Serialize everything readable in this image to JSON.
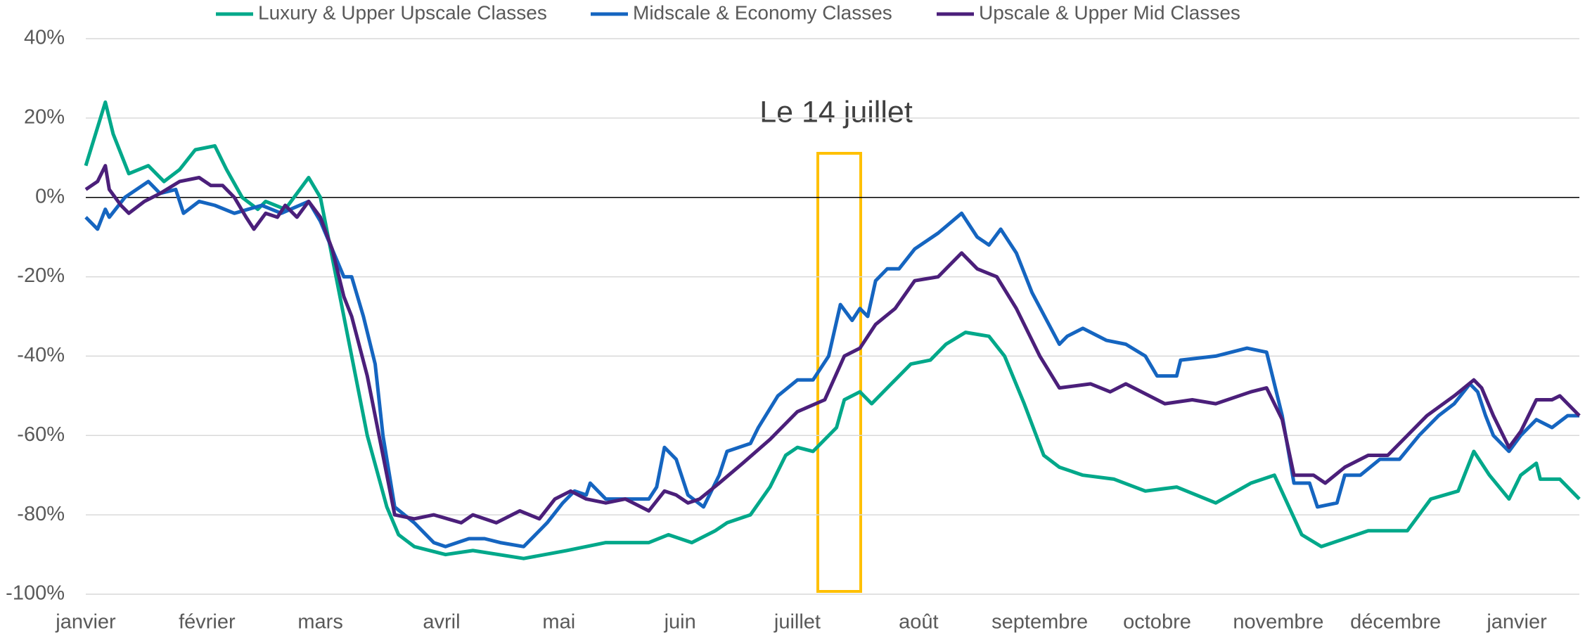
{
  "chart_data": {
    "type": "line",
    "annotation": "Le 14 juillet",
    "xlim": [
      0,
      382
    ],
    "xticks": [
      {
        "value": 0,
        "label": "janvier"
      },
      {
        "value": 31,
        "label": "février"
      },
      {
        "value": 60,
        "label": "mars"
      },
      {
        "value": 91,
        "label": "avril"
      },
      {
        "value": 121,
        "label": "mai"
      },
      {
        "value": 152,
        "label": "juin"
      },
      {
        "value": 182,
        "label": "juillet"
      },
      {
        "value": 213,
        "label": "août"
      },
      {
        "value": 244,
        "label": "septembre"
      },
      {
        "value": 274,
        "label": "octobre"
      },
      {
        "value": 305,
        "label": "novembre"
      },
      {
        "value": 335,
        "label": "décembre"
      },
      {
        "value": 366,
        "label": "janvier"
      }
    ],
    "ylim": [
      -100,
      40
    ],
    "yticks": [
      {
        "value": -100,
        "label": "-100%"
      },
      {
        "value": -80,
        "label": "-80%"
      },
      {
        "value": -60,
        "label": "-60%"
      },
      {
        "value": -40,
        "label": "-40%"
      },
      {
        "value": -20,
        "label": "-20%"
      },
      {
        "value": 0,
        "label": "0%"
      },
      {
        "value": 20,
        "label": "20%"
      },
      {
        "value": 40,
        "label": "40%"
      }
    ],
    "grid": true,
    "series": [
      {
        "name": "Luxury & Upper Upscale Classes",
        "color": "#00a88a",
        "x": [
          0,
          5,
          7,
          11,
          16,
          20,
          24,
          28,
          33,
          36,
          40,
          44,
          46,
          51,
          57,
          60,
          64,
          68,
          72,
          77,
          80,
          84,
          92,
          99,
          112,
          123,
          133,
          144,
          149,
          155,
          161,
          164,
          170,
          175,
          179,
          182,
          186,
          192,
          194,
          198,
          201,
          206,
          211,
          216,
          220,
          225,
          231,
          235,
          240,
          245,
          249,
          255,
          263,
          271,
          279,
          289,
          298,
          304,
          311,
          316,
          328,
          338,
          344,
          351,
          355,
          359,
          364,
          367,
          371,
          372,
          377,
          382
        ],
        "values": [
          8,
          24,
          16,
          6,
          8,
          4,
          7,
          12,
          13,
          7,
          0,
          -3,
          -1,
          -3,
          5,
          0,
          -20,
          -40,
          -60,
          -78,
          -85,
          -88,
          -90,
          -89,
          -91,
          -89,
          -87,
          -87,
          -85,
          -87,
          -84,
          -82,
          -80,
          -73,
          -65,
          -63,
          -64,
          -58,
          -51,
          -49,
          -52,
          -47,
          -42,
          -41,
          -37,
          -34,
          -35,
          -40,
          -52,
          -65,
          -68,
          -70,
          -71,
          -74,
          -73,
          -77,
          -72,
          -70,
          -85,
          -88,
          -84,
          -84,
          -76,
          -74,
          -64,
          -70,
          -76,
          -70,
          -67,
          -71,
          -71,
          -76
        ]
      },
      {
        "name": "Midscale & Economy Classes",
        "color": "#1565c0",
        "x": [
          0,
          3,
          5,
          6,
          10,
          16,
          19,
          23,
          25,
          29,
          33,
          38,
          45,
          50,
          57,
          60,
          63,
          66,
          68,
          71,
          74,
          76,
          79,
          84,
          89,
          92,
          98,
          102,
          106,
          112,
          115,
          118,
          122,
          125,
          128,
          129,
          133,
          138,
          144,
          146,
          148,
          151,
          154,
          158,
          162,
          164,
          170,
          172,
          177,
          182,
          186,
          190,
          193,
          196,
          198,
          200,
          202,
          205,
          208,
          212,
          218,
          224,
          228,
          231,
          234,
          238,
          242,
          249,
          251,
          255,
          261,
          266,
          271,
          274,
          279,
          280,
          289,
          297,
          302,
          306,
          309,
          313,
          315,
          320,
          322,
          326,
          331,
          336,
          341,
          346,
          350,
          354,
          356,
          358,
          360,
          364,
          367,
          371,
          375,
          379,
          382
        ],
        "values": [
          -5,
          -8,
          -3,
          -5,
          0,
          4,
          1,
          2,
          -4,
          -1,
          -2,
          -4,
          -2,
          -4,
          -1,
          -6,
          -13,
          -20,
          -20,
          -30,
          -42,
          -60,
          -78,
          -82,
          -87,
          -88,
          -86,
          -86,
          -87,
          -88,
          -85,
          -82,
          -77,
          -74,
          -75,
          -72,
          -76,
          -76,
          -76,
          -73,
          -63,
          -66,
          -75,
          -78,
          -70,
          -64,
          -62,
          -58,
          -50,
          -46,
          -46,
          -40,
          -27,
          -31,
          -28,
          -30,
          -21,
          -18,
          -18,
          -13,
          -9,
          -4,
          -10,
          -12,
          -8,
          -14,
          -24,
          -37,
          -35,
          -33,
          -36,
          -37,
          -40,
          -45,
          -45,
          -41,
          -40,
          -38,
          -39,
          -55,
          -72,
          -72,
          -78,
          -77,
          -70,
          -70,
          -66,
          -66,
          -60,
          -55,
          -52,
          -47,
          -49,
          -55,
          -60,
          -64,
          -60,
          -56,
          -58,
          -55,
          -55
        ]
      },
      {
        "name": "Upscale & Upper Mid Classes",
        "color": "#4b1f7a",
        "x": [
          0,
          3,
          5,
          6,
          9,
          11,
          15,
          19,
          24,
          29,
          32,
          35,
          38,
          41,
          43,
          46,
          49,
          51,
          54,
          57,
          60,
          63,
          66,
          68,
          72,
          76,
          79,
          84,
          89,
          96,
          99,
          105,
          111,
          116,
          120,
          124,
          128,
          133,
          138,
          144,
          148,
          151,
          154,
          157,
          162,
          168,
          175,
          182,
          189,
          194,
          198,
          202,
          207,
          212,
          218,
          224,
          228,
          233,
          238,
          244,
          249,
          257,
          262,
          266,
          276,
          283,
          289,
          298,
          302,
          306,
          309,
          314,
          317,
          322,
          328,
          333,
          338,
          343,
          350,
          355,
          357,
          360,
          364,
          367,
          371,
          375,
          377,
          382
        ],
        "values": [
          2,
          4,
          8,
          2,
          -2,
          -4,
          -1,
          1,
          4,
          5,
          3,
          3,
          0,
          -5,
          -8,
          -4,
          -5,
          -2,
          -5,
          -1,
          -5,
          -13,
          -25,
          -30,
          -45,
          -65,
          -80,
          -81,
          -80,
          -82,
          -80,
          -82,
          -79,
          -81,
          -76,
          -74,
          -76,
          -77,
          -76,
          -79,
          -74,
          -75,
          -77,
          -76,
          -72,
          -67,
          -61,
          -54,
          -51,
          -40,
          -38,
          -32,
          -28,
          -21,
          -20,
          -14,
          -18,
          -20,
          -28,
          -40,
          -48,
          -47,
          -49,
          -47,
          -52,
          -51,
          -52,
          -49,
          -48,
          -56,
          -70,
          -70,
          -72,
          -68,
          -65,
          -65,
          -60,
          -55,
          -50,
          -46,
          -48,
          -55,
          -63,
          -59,
          -51,
          -51,
          -50,
          -55
        ]
      }
    ]
  }
}
